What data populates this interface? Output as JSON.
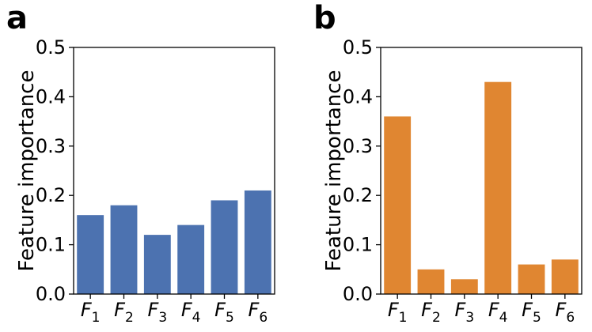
{
  "chart_data": [
    {
      "type": "bar",
      "panel_label": "a",
      "categories": [
        "F1",
        "F2",
        "F3",
        "F4",
        "F5",
        "F6"
      ],
      "category_display": [
        {
          "base": "F",
          "sub": "1"
        },
        {
          "base": "F",
          "sub": "2"
        },
        {
          "base": "F",
          "sub": "3"
        },
        {
          "base": "F",
          "sub": "4"
        },
        {
          "base": "F",
          "sub": "5"
        },
        {
          "base": "F",
          "sub": "6"
        }
      ],
      "values": [
        0.16,
        0.18,
        0.12,
        0.14,
        0.19,
        0.21
      ],
      "xlabel": "",
      "ylabel": "Feature importance",
      "ylim": [
        0,
        0.5
      ],
      "yticks": [
        "0.0",
        "0.1",
        "0.2",
        "0.3",
        "0.4",
        "0.5"
      ],
      "ytick_values": [
        0,
        0.1,
        0.2,
        0.3,
        0.4,
        0.5
      ],
      "grid": false,
      "color": "#4c72b0"
    },
    {
      "type": "bar",
      "panel_label": "b",
      "categories": [
        "F1",
        "F2",
        "F3",
        "F4",
        "F5",
        "F6"
      ],
      "category_display": [
        {
          "base": "F",
          "sub": "1"
        },
        {
          "base": "F",
          "sub": "2"
        },
        {
          "base": "F",
          "sub": "3"
        },
        {
          "base": "F",
          "sub": "4"
        },
        {
          "base": "F",
          "sub": "5"
        },
        {
          "base": "F",
          "sub": "6"
        }
      ],
      "values": [
        0.36,
        0.05,
        0.03,
        0.43,
        0.06,
        0.07
      ],
      "xlabel": "",
      "ylabel": "Feature importance",
      "ylim": [
        0,
        0.5
      ],
      "yticks": [
        "0.0",
        "0.1",
        "0.2",
        "0.3",
        "0.4",
        "0.5"
      ],
      "ytick_values": [
        0,
        0.1,
        0.2,
        0.3,
        0.4,
        0.5
      ],
      "grid": false,
      "color": "#e08631"
    }
  ]
}
